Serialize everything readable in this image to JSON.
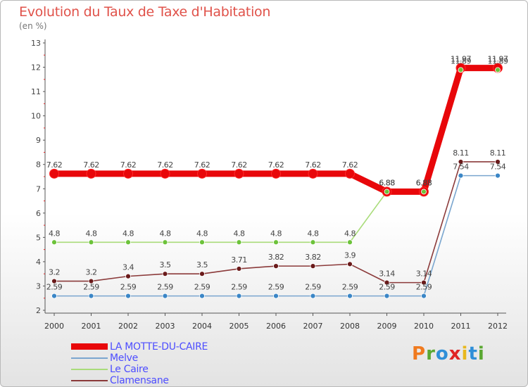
{
  "header": {
    "title": "Evolution du Taux de Taxe d'Habitation",
    "subtitle": "(en %)"
  },
  "brand": {
    "text": "Proxiti",
    "colors": [
      "#f07a1e",
      "#5aa832",
      "#2f8fd8",
      "#e02424",
      "#e8b81e",
      "#2f8fd8",
      "#5aa832"
    ]
  },
  "chart_data": {
    "type": "line",
    "title": "Evolution du Taux de Taxe d'Habitation",
    "ylabel": "(en %)",
    "xlabel": "",
    "categories": [
      "2000",
      "2001",
      "2002",
      "2003",
      "2004",
      "2005",
      "2006",
      "2007",
      "2008",
      "2009",
      "2010",
      "2011",
      "2012"
    ],
    "ylim": [
      2,
      13
    ],
    "yticks": [
      2,
      3,
      4,
      5,
      6,
      7,
      8,
      9,
      10,
      11,
      12,
      13
    ],
    "grid": false,
    "legend_position": "bottom-left",
    "series": [
      {
        "name": "LA MOTTE-DU-CAIRE",
        "color": "#e8070a",
        "marker": "#e8070a",
        "values": [
          7.62,
          7.62,
          7.62,
          7.62,
          7.62,
          7.62,
          7.62,
          7.62,
          7.62,
          6.88,
          6.88,
          11.97,
          11.97
        ],
        "labels": [
          "7.62",
          "7.62",
          "7.62",
          "7.62",
          "7.62",
          "7.62",
          "7.62",
          "7.62",
          "7.62",
          "6.88",
          "6.88",
          "11.97",
          "11.97"
        ]
      },
      {
        "name": "Melve",
        "color": "#7aa6cf",
        "marker": "#3b86c6",
        "values": [
          2.59,
          2.59,
          2.59,
          2.59,
          2.59,
          2.59,
          2.59,
          2.59,
          2.59,
          2.59,
          2.59,
          7.54,
          7.54
        ],
        "labels": [
          "2.59",
          "2.59",
          "2.59",
          "2.59",
          "2.59",
          "2.59",
          "2.59",
          "2.59",
          "2.59",
          "2.59",
          "2.59",
          "7.54",
          "7.54"
        ]
      },
      {
        "name": "Le Caire",
        "color": "#a9dc7a",
        "marker": "#6cc23a",
        "values": [
          4.8,
          4.8,
          4.8,
          4.8,
          4.8,
          4.8,
          4.8,
          4.8,
          4.8,
          6.88,
          6.88,
          11.89,
          11.89
        ],
        "labels": [
          "4.8",
          "4.8",
          "4.8",
          "4.8",
          "4.8",
          "4.8",
          "4.8",
          "4.8",
          "4.8",
          "6.88",
          "6.88",
          "11.89",
          "11.89"
        ]
      },
      {
        "name": "Clamensane",
        "color": "#8b3a3a",
        "marker": "#6a1a1a",
        "values": [
          3.2,
          3.2,
          3.4,
          3.5,
          3.5,
          3.71,
          3.82,
          3.82,
          3.9,
          3.14,
          3.14,
          8.11,
          8.11
        ],
        "labels": [
          "3.2",
          "3.2",
          "3.4",
          "3.5",
          "3.5",
          "3.71",
          "3.82",
          "3.82",
          "3.9",
          "3.14",
          "3.14",
          "8.11",
          "8.11"
        ]
      }
    ]
  }
}
